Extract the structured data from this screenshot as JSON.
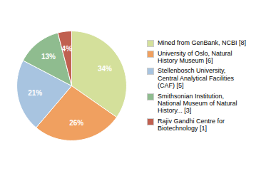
{
  "chart_data": {
    "type": "pie",
    "categories": [
      "Mined from GenBank, NCBI [8]",
      "University of Oslo, Natural\nHistory Museum [6]",
      "Stellenbosch University,\nCentral Analytical Facilities\n(CAF)  [5]",
      "Smithsonian Institution,\nNational Museum of Natural\nHistory... [3]",
      "Rajiv Gandhi Centre for\nBiotechnology [1]"
    ],
    "values": [
      34,
      26,
      21,
      13,
      4
    ],
    "value_labels": [
      "34%",
      "26%",
      "21%",
      "13%",
      "4%"
    ],
    "colors": [
      "#d4e09b",
      "#f0a060",
      "#a8c4e0",
      "#8fbc8f",
      "#c06050"
    ],
    "data_labels": true,
    "legend": "right"
  }
}
